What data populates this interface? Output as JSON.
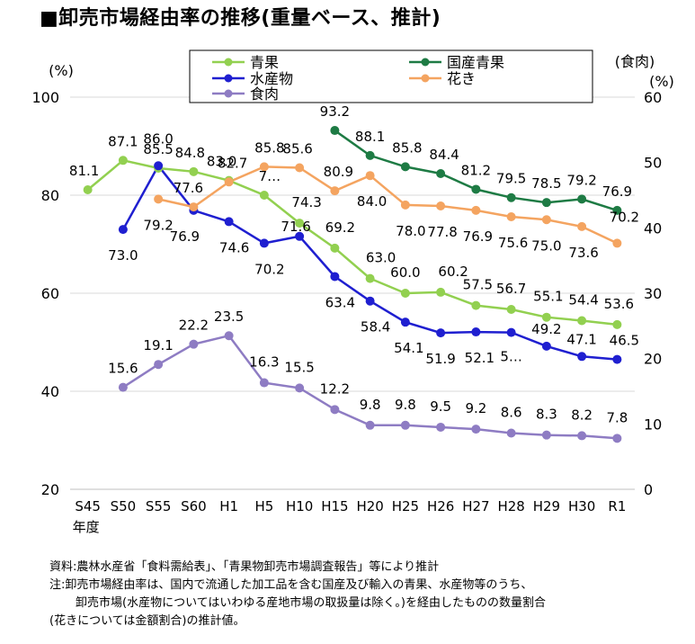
{
  "chart_data": {
    "type": "line",
    "title": "■卸売市場経由率の推移(重量ベース、推計)",
    "categories": [
      "S45",
      "S50",
      "S55",
      "S60",
      "H1",
      "H5",
      "H10",
      "H15",
      "H20",
      "H25",
      "H26",
      "H27",
      "H28",
      "H29",
      "H30",
      "R1"
    ],
    "x_axis_note": "年度",
    "y_left": {
      "label": "(%)",
      "min": 20,
      "max": 100,
      "ticks": [
        20,
        40,
        60,
        80,
        100
      ]
    },
    "y_right": {
      "label_top": "(食肉)",
      "label": "(%)",
      "min": 0,
      "max": 60,
      "ticks": [
        0,
        10,
        20,
        30,
        40,
        50,
        60
      ]
    },
    "series": [
      {
        "name": "青果",
        "axis": "left",
        "color": "#92d050",
        "values": [
          81.1,
          87.1,
          85.5,
          84.8,
          83.0,
          80.0,
          74.3,
          69.2,
          63.0,
          60.0,
          60.2,
          57.5,
          56.7,
          55.1,
          54.4,
          53.6
        ],
        "labels": [
          "81.1",
          "87.1",
          "85.5",
          "84.8",
          "83.0",
          "7…",
          "74.3",
          "69.2",
          "63.0",
          "60.0",
          "60.2",
          "57.5",
          "56.7",
          "55.1",
          "54.4",
          "53.6"
        ]
      },
      {
        "name": "国産青果",
        "axis": "left",
        "color": "#1e7b44",
        "values": [
          null,
          null,
          null,
          null,
          null,
          null,
          null,
          93.2,
          88.1,
          85.8,
          84.4,
          81.2,
          79.5,
          78.5,
          79.2,
          76.9
        ],
        "labels": [
          null,
          null,
          null,
          null,
          null,
          null,
          null,
          "93.2",
          "88.1",
          "85.8",
          "84.4",
          "81.2",
          "79.5",
          "78.5",
          "79.2",
          "76.9"
        ]
      },
      {
        "name": "水産物",
        "axis": "left",
        "color": "#1f1fd0",
        "values": [
          null,
          73.0,
          86.0,
          76.9,
          74.6,
          70.2,
          71.6,
          63.4,
          58.4,
          54.1,
          51.9,
          52.1,
          52.0,
          49.2,
          47.1,
          46.5
        ],
        "labels": [
          null,
          "73.0",
          "86.0",
          "76.9",
          "74.6",
          "70.2",
          "71.6",
          "63.4",
          "58.4",
          "54.1",
          "51.9",
          "52.1",
          "5…",
          "49.2",
          "47.1",
          "46.5"
        ]
      },
      {
        "name": "花き",
        "axis": "left",
        "color": "#f4a460",
        "values": [
          null,
          null,
          79.2,
          77.6,
          82.7,
          85.8,
          85.6,
          80.9,
          84.0,
          78.0,
          77.8,
          76.9,
          75.6,
          75.0,
          73.6,
          70.2
        ],
        "labels": [
          null,
          null,
          "79.2",
          "77.6",
          "82.7",
          "85.8",
          "85.6",
          "80.9",
          "84.0",
          "78.0",
          "77.8",
          "76.9",
          "75.6",
          "75.0",
          "73.6",
          "70.2"
        ]
      },
      {
        "name": "食肉",
        "axis": "right",
        "color": "#8e7cc3",
        "values": [
          null,
          15.6,
          19.1,
          22.2,
          23.5,
          16.3,
          15.5,
          12.2,
          9.8,
          9.8,
          9.5,
          9.2,
          8.6,
          8.3,
          8.2,
          7.8
        ],
        "labels": [
          null,
          "15.6",
          "19.1",
          "22.2",
          "23.5",
          "16.3",
          "15.5",
          "12.2",
          "9.8",
          "9.8",
          "9.5",
          "9.2",
          "8.6",
          "8.3",
          "8.2",
          "7.8"
        ]
      }
    ],
    "legend": {
      "placement": "top",
      "columns": 2
    }
  },
  "footnotes": {
    "source": "資料:農林水産省「食料需給表」、「青果物卸売市場調査報告」等により推計",
    "note_line1": "注:卸売市場経由率は、国内で流通した加工品を含む国産及び輸入の青果、水産物等のうち、",
    "note_line2": "卸売市場(水産物についてはいわゆる産地市場の取扱量は除く。)を経由したものの数量割合",
    "note_line3": "(花きについては金額割合)の推計値。"
  }
}
